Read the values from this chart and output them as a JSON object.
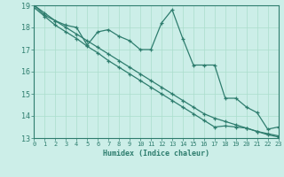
{
  "xlabel": "Humidex (Indice chaleur)",
  "bg_color": "#cceee8",
  "line_color": "#2e7d6e",
  "grid_color": "#aaddcc",
  "xmin": 0,
  "xmax": 23,
  "ymin": 13,
  "ymax": 19,
  "series_jagged": [
    19.0,
    18.55,
    18.3,
    18.1,
    18.0,
    17.2,
    17.8,
    17.9,
    17.6,
    17.4,
    17.0,
    17.0,
    18.2,
    18.8,
    17.5,
    16.3,
    16.3,
    16.3,
    14.8,
    14.8,
    14.4,
    14.15,
    13.4,
    13.5
  ],
  "series_line1": [
    18.9,
    18.5,
    18.1,
    17.8,
    17.5,
    17.15,
    16.85,
    16.5,
    16.2,
    15.9,
    15.6,
    15.3,
    15.0,
    14.7,
    14.4,
    14.1,
    13.8,
    13.5,
    13.55,
    13.5,
    13.45,
    13.3,
    13.2,
    13.1
  ],
  "series_line2": [
    19.0,
    18.65,
    18.3,
    18.0,
    17.7,
    17.4,
    17.1,
    16.8,
    16.5,
    16.2,
    15.9,
    15.6,
    15.3,
    15.0,
    14.7,
    14.4,
    14.1,
    13.9,
    13.75,
    13.6,
    13.45,
    13.3,
    13.15,
    13.05
  ]
}
